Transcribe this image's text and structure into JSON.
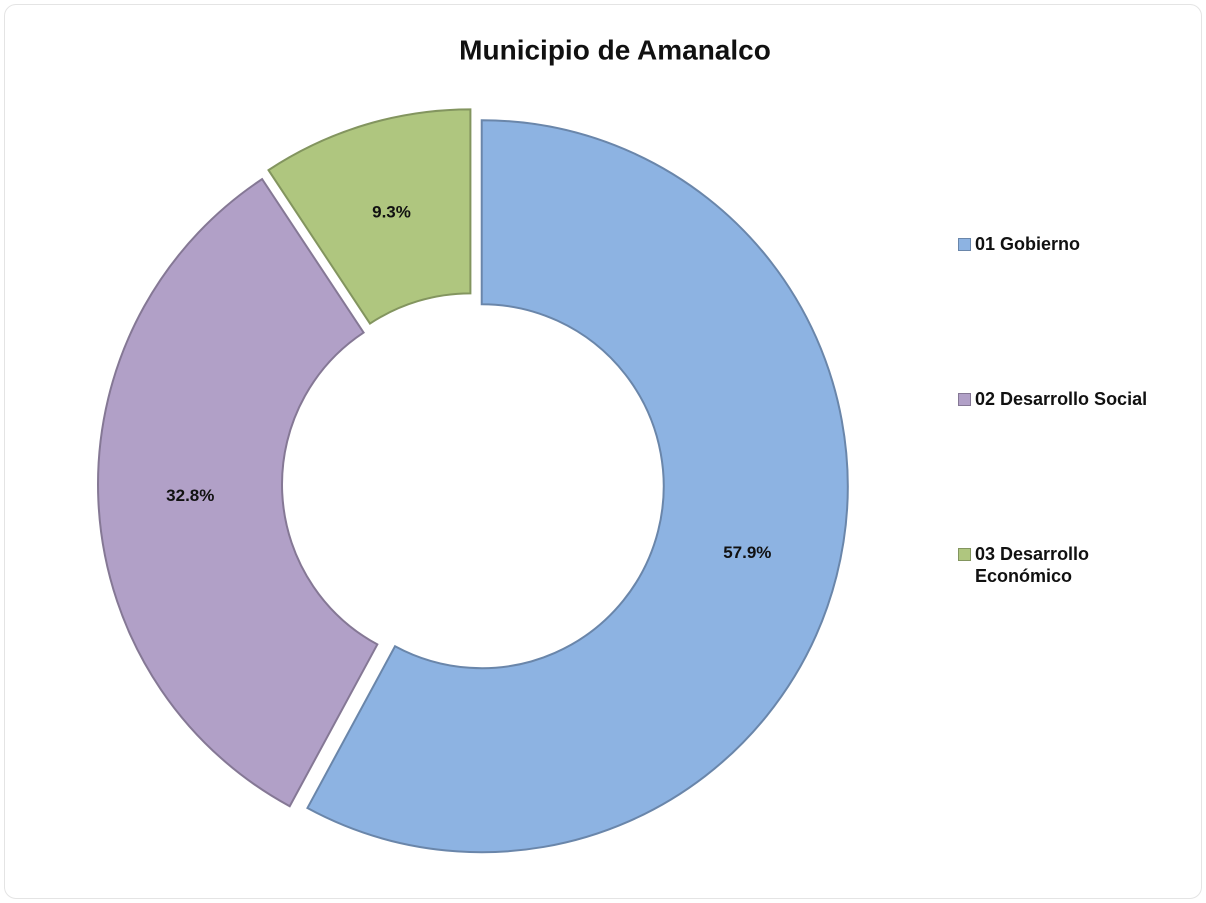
{
  "chart_data": {
    "type": "donut",
    "title": "Municipio de Amanalco",
    "categories": [
      "01 Gobierno",
      "02 Desarrollo Social",
      "03 Desarrollo Económico"
    ],
    "series": [
      {
        "values": [
          57.9,
          32.8,
          9.3
        ],
        "value_labels": [
          "57.9%",
          "32.8%",
          "9.3%"
        ],
        "colors": [
          "#8db3e2",
          "#b1a0c7",
          "#afc67f"
        ]
      }
    ],
    "legend": "right"
  }
}
